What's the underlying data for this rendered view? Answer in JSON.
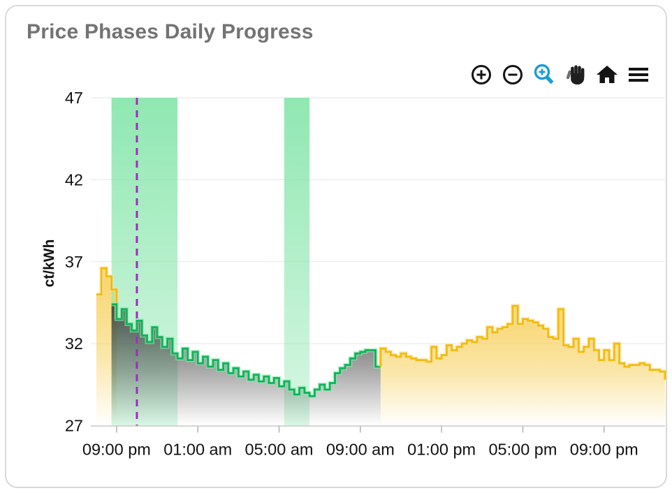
{
  "header": {
    "title": "Price Phases Daily Progress"
  },
  "toolbar": {
    "buttons": [
      {
        "name": "zoom-in-icon"
      },
      {
        "name": "zoom-out-icon"
      },
      {
        "name": "box-zoom-icon",
        "active_color": "#1A9CD8"
      },
      {
        "name": "pan-hand-icon"
      },
      {
        "name": "home-reset-icon"
      },
      {
        "name": "menu-icon"
      }
    ]
  },
  "chart_data": {
    "type": "line",
    "subtype": "step",
    "title": "Price Phases Daily Progress",
    "xlabel": "",
    "ylabel": "ct/kWh",
    "ylim": [
      27,
      47
    ],
    "yticks": [
      27,
      32,
      37,
      42,
      47
    ],
    "grid": "horizontal",
    "legend": "none",
    "xlim_hours": [
      -0.2,
      28
    ],
    "x_axis": {
      "start_time": "20:00",
      "step_minutes": 15,
      "span_hours": 28
    },
    "xticks": [
      {
        "t": 1,
        "label": "09:00 pm"
      },
      {
        "t": 5,
        "label": "01:00 am"
      },
      {
        "t": 9,
        "label": "05:00 am"
      },
      {
        "t": 13,
        "label": "09:00 am"
      },
      {
        "t": 17,
        "label": "01:00 pm"
      },
      {
        "t": 21,
        "label": "05:00 pm"
      },
      {
        "t": 25,
        "label": "09:00 pm"
      }
    ],
    "series": [
      {
        "name": "price-early-forecast",
        "stroke": "yellow",
        "fill": "yellow",
        "t0": 0.0,
        "dt": 0.25,
        "end_drop_to": 33.5,
        "values": [
          35.0,
          36.6,
          36.1,
          35.3
        ]
      },
      {
        "name": "price-known",
        "stroke": "green",
        "fill": "dark",
        "t0": 0.75,
        "dt": 0.25,
        "values": [
          34.4,
          33.5,
          34.1,
          33.2,
          32.8,
          33.4,
          32.5,
          32.1,
          33.0,
          32.4,
          31.8,
          32.3,
          31.4,
          31.1,
          31.7,
          31.0,
          31.5,
          30.8,
          31.2,
          30.6,
          31.0,
          30.4,
          30.8,
          30.2,
          30.5,
          30.0,
          30.3,
          29.8,
          30.1,
          29.7,
          30.0,
          29.6,
          29.9,
          29.4,
          29.7,
          29.2,
          28.9,
          29.3,
          29.0,
          28.8,
          29.2,
          29.5,
          29.2,
          29.6,
          30.2,
          30.5,
          30.7,
          31.1,
          31.4,
          31.5,
          31.6,
          31.6,
          30.6
        ]
      },
      {
        "name": "price-forecast",
        "stroke": "yellow",
        "fill": "yellow",
        "t0": 14.0,
        "dt": 0.25,
        "start_rise_from": 30.6,
        "end_drop_to": 29.8,
        "values": [
          31.7,
          31.5,
          31.3,
          31.2,
          31.4,
          31.2,
          31.1,
          31.0,
          31.0,
          30.9,
          31.8,
          31.1,
          31.3,
          31.9,
          31.6,
          31.8,
          32.0,
          32.2,
          32.1,
          32.4,
          32.3,
          33.0,
          32.7,
          32.9,
          33.0,
          33.2,
          34.3,
          33.2,
          33.5,
          33.4,
          33.3,
          33.1,
          32.9,
          32.4,
          32.3,
          34.1,
          31.9,
          31.8,
          32.3,
          31.5,
          31.8,
          32.3,
          31.6,
          31.0,
          31.6,
          31.0,
          32.0,
          30.8,
          30.6,
          30.7,
          30.7,
          30.8,
          30.7,
          30.4,
          30.4,
          30.3
        ]
      }
    ],
    "cheap_phase_bands": [
      {
        "t_from": 0.75,
        "t_to": 4.0
      },
      {
        "t_from": 9.25,
        "t_to": 10.5
      }
    ],
    "now_marker": {
      "t": 2.0
    },
    "colors": {
      "green_line": "#12B158",
      "green_glow": "#8CE9B2",
      "yellow_line": "#F1BC0F",
      "yellow_glow": "#F9E09A",
      "yellow_fill": "#F7D262",
      "dark_fill": "#333333",
      "band": "#8AE6AD",
      "now_line": "#9C2FBE",
      "grid": "#ebebeb",
      "axis": "#c9c9c9",
      "tick": "#b5b5b5",
      "label": "#111111",
      "title": "#737373"
    }
  }
}
